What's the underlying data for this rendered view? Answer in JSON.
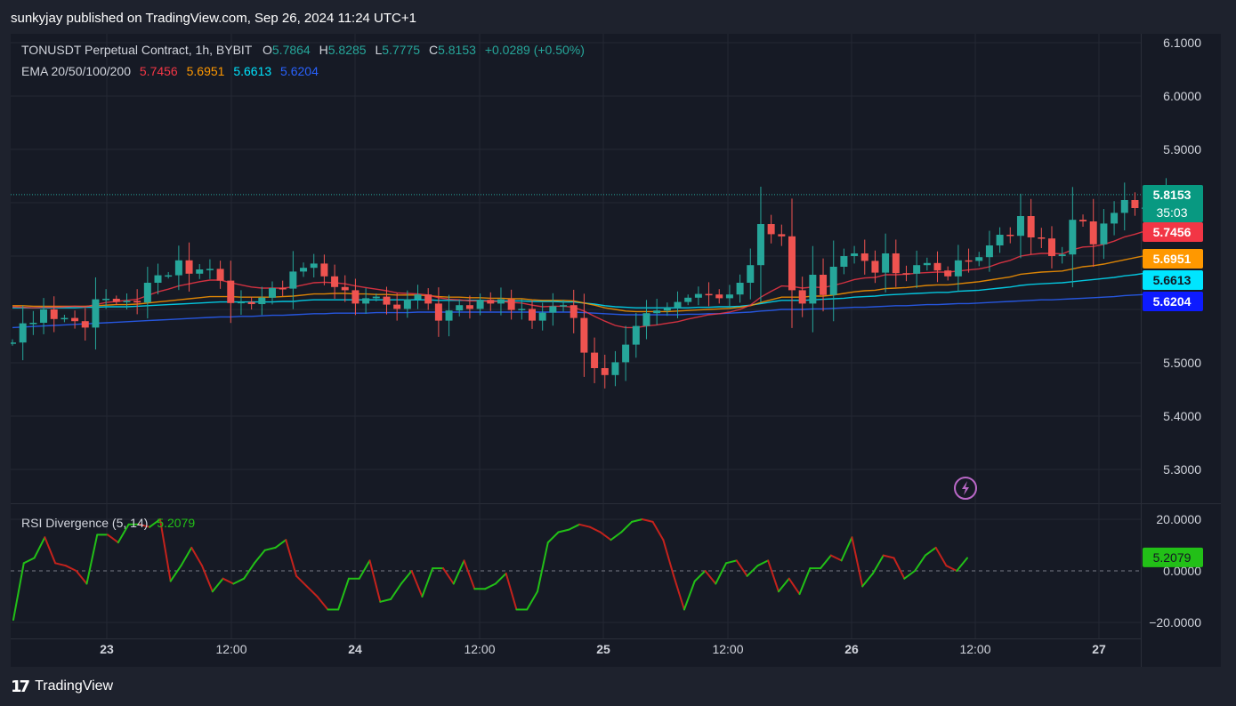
{
  "header": {
    "published": "sunkyjay published on TradingView.com, Sep 26, 2024 11:24 UTC+1"
  },
  "footer": {
    "brand": "TradingView",
    "logo_icon": "tradingview-logo-icon"
  },
  "legend": {
    "symbol": "TONUSDT Perpetual Contract, 1h, BYBIT",
    "o_label": "O",
    "o_value": "5.7864",
    "h_label": "H",
    "h_value": "5.8285",
    "l_label": "L",
    "l_value": "5.7775",
    "c_label": "C",
    "c_value": "5.8153",
    "change": "+0.0289 (+0.50%)",
    "ema_label": "EMA 20/50/100/200",
    "ema20": "5.7456",
    "ema50": "5.6951",
    "ema100": "5.6613",
    "ema200": "5.6204",
    "rsi_label": "RSI Divergence (5, 14)",
    "rsi_value": "5.2079"
  },
  "colors": {
    "up": "#26a69a",
    "down": "#ef5350",
    "ema20": "#f23645",
    "ema50": "#ff9800",
    "ema100": "#00e5ff",
    "ema200": "#2962ff",
    "rsi_up": "#22c017",
    "rsi_down": "#c4221c"
  },
  "chart_data": [
    {
      "type": "candlestick",
      "xlabel": "",
      "ylabel": "",
      "x_ticks": [
        "23",
        "12:00",
        "24",
        "12:00",
        "25",
        "12:00",
        "26",
        "12:00",
        "27"
      ],
      "y_ticks": [
        "6.1000",
        "6.0000",
        "5.9000",
        "5.5000",
        "5.4000",
        "5.3000"
      ],
      "ylim": [
        5.23,
        6.13
      ],
      "price_labels": [
        {
          "name": "last",
          "value": 5.8153,
          "text": "5.8153",
          "countdown": "35:03"
        },
        {
          "name": "ema20",
          "value": 5.7456,
          "text": "5.7456"
        },
        {
          "name": "ema50",
          "value": 5.6951,
          "text": "5.6951"
        },
        {
          "name": "ema100",
          "value": 5.6613,
          "text": "5.6613"
        },
        {
          "name": "ema200",
          "value": 5.6204,
          "text": "5.6204"
        }
      ],
      "close_start": 5.538,
      "closes": [
        5.538,
        5.574,
        5.575,
        5.6,
        5.582,
        5.584,
        5.578,
        5.566,
        5.619,
        5.62,
        5.614,
        5.616,
        5.613,
        5.65,
        5.664,
        5.664,
        5.692,
        5.667,
        5.675,
        5.676,
        5.654,
        5.612,
        5.614,
        5.61,
        5.622,
        5.64,
        5.639,
        5.671,
        5.678,
        5.686,
        5.662,
        5.642,
        5.636,
        5.611,
        5.621,
        5.624,
        5.609,
        5.601,
        5.619,
        5.628,
        5.611,
        5.579,
        5.598,
        5.608,
        5.601,
        5.618,
        5.611,
        5.619,
        5.599,
        5.601,
        5.579,
        5.594,
        5.606,
        5.608,
        5.584,
        5.519,
        5.49,
        5.477,
        5.501,
        5.534,
        5.569,
        5.593,
        5.598,
        5.603,
        5.614,
        5.622,
        5.629,
        5.628,
        5.621,
        5.628,
        5.65,
        5.683,
        5.76,
        5.741,
        5.737,
        5.636,
        5.611,
        5.665,
        5.627,
        5.68,
        5.7,
        5.705,
        5.691,
        5.669,
        5.705,
        5.668,
        5.667,
        5.683,
        5.687,
        5.673,
        5.662,
        5.692,
        5.691,
        5.698,
        5.72,
        5.74,
        5.738,
        5.775,
        5.735,
        5.733,
        5.7,
        5.703,
        5.768,
        5.765,
        5.722,
        5.761,
        5.781,
        5.805,
        5.79,
        5.791,
        5.782,
        5.815
      ],
      "series": [
        {
          "name": "EMA 20",
          "values": [
            5.605,
            5.604,
            5.603,
            5.604,
            5.604,
            5.605,
            5.606,
            5.605,
            5.609,
            5.613,
            5.615,
            5.617,
            5.619,
            5.626,
            5.633,
            5.638,
            5.644,
            5.648,
            5.652,
            5.655,
            5.655,
            5.65,
            5.646,
            5.642,
            5.64,
            5.64,
            5.64,
            5.642,
            5.646,
            5.65,
            5.651,
            5.65,
            5.648,
            5.644,
            5.641,
            5.638,
            5.635,
            5.631,
            5.63,
            5.629,
            5.627,
            5.622,
            5.619,
            5.618,
            5.616,
            5.616,
            5.615,
            5.615,
            5.613,
            5.612,
            5.608,
            5.605,
            5.606,
            5.606,
            5.604,
            5.597,
            5.587,
            5.578,
            5.57,
            5.566,
            5.566,
            5.569,
            5.571,
            5.574,
            5.577,
            5.582,
            5.586,
            5.59,
            5.592,
            5.595,
            5.6,
            5.608,
            5.623,
            5.634,
            5.644,
            5.643,
            5.64,
            5.642,
            5.641,
            5.645,
            5.65,
            5.656,
            5.659,
            5.66,
            5.665,
            5.665,
            5.666,
            5.668,
            5.669,
            5.67,
            5.67,
            5.672,
            5.674,
            5.676,
            5.68,
            5.687,
            5.692,
            5.7,
            5.703,
            5.705,
            5.705,
            5.704,
            5.712,
            5.717,
            5.718,
            5.722,
            5.728,
            5.736,
            5.741,
            5.747,
            5.75,
            5.746
          ]
        },
        {
          "name": "EMA 50",
          "values": [
            5.607,
            5.607,
            5.606,
            5.606,
            5.606,
            5.606,
            5.606,
            5.606,
            5.607,
            5.608,
            5.609,
            5.609,
            5.61,
            5.612,
            5.614,
            5.616,
            5.618,
            5.62,
            5.622,
            5.624,
            5.624,
            5.624,
            5.623,
            5.623,
            5.623,
            5.623,
            5.624,
            5.625,
            5.627,
            5.629,
            5.629,
            5.63,
            5.63,
            5.629,
            5.629,
            5.628,
            5.628,
            5.627,
            5.627,
            5.627,
            5.626,
            5.624,
            5.623,
            5.623,
            5.622,
            5.622,
            5.621,
            5.621,
            5.62,
            5.62,
            5.618,
            5.617,
            5.617,
            5.617,
            5.616,
            5.612,
            5.608,
            5.603,
            5.6,
            5.597,
            5.596,
            5.596,
            5.596,
            5.596,
            5.597,
            5.598,
            5.599,
            5.6,
            5.601,
            5.602,
            5.604,
            5.607,
            5.613,
            5.618,
            5.623,
            5.623,
            5.623,
            5.625,
            5.625,
            5.627,
            5.63,
            5.633,
            5.635,
            5.636,
            5.639,
            5.64,
            5.641,
            5.643,
            5.645,
            5.646,
            5.646,
            5.648,
            5.65,
            5.652,
            5.655,
            5.658,
            5.661,
            5.666,
            5.668,
            5.67,
            5.671,
            5.672,
            5.676,
            5.68,
            5.682,
            5.685,
            5.689,
            5.693,
            5.697,
            5.701,
            5.705,
            5.695
          ]
        },
        {
          "name": "EMA 100",
          "values": [
            5.603,
            5.603,
            5.603,
            5.603,
            5.603,
            5.603,
            5.603,
            5.604,
            5.604,
            5.605,
            5.605,
            5.605,
            5.606,
            5.607,
            5.608,
            5.609,
            5.61,
            5.611,
            5.612,
            5.613,
            5.614,
            5.614,
            5.614,
            5.614,
            5.614,
            5.614,
            5.615,
            5.615,
            5.617,
            5.618,
            5.618,
            5.618,
            5.618,
            5.618,
            5.618,
            5.618,
            5.618,
            5.618,
            5.618,
            5.618,
            5.618,
            5.617,
            5.617,
            5.617,
            5.617,
            5.617,
            5.616,
            5.616,
            5.616,
            5.616,
            5.615,
            5.615,
            5.615,
            5.614,
            5.614,
            5.612,
            5.61,
            5.607,
            5.605,
            5.604,
            5.603,
            5.603,
            5.603,
            5.603,
            5.603,
            5.603,
            5.604,
            5.604,
            5.605,
            5.605,
            5.606,
            5.608,
            5.611,
            5.614,
            5.617,
            5.617,
            5.617,
            5.618,
            5.619,
            5.62,
            5.621,
            5.623,
            5.624,
            5.625,
            5.627,
            5.628,
            5.629,
            5.63,
            5.631,
            5.632,
            5.632,
            5.634,
            5.635,
            5.636,
            5.638,
            5.64,
            5.642,
            5.645,
            5.647,
            5.648,
            5.649,
            5.65,
            5.652,
            5.654,
            5.656,
            5.658,
            5.66,
            5.663,
            5.665,
            5.668,
            5.67,
            5.661
          ]
        },
        {
          "name": "EMA 200",
          "values": [
            5.566,
            5.567,
            5.568,
            5.569,
            5.57,
            5.571,
            5.572,
            5.573,
            5.574,
            5.575,
            5.576,
            5.577,
            5.578,
            5.579,
            5.58,
            5.581,
            5.582,
            5.583,
            5.584,
            5.585,
            5.586,
            5.586,
            5.587,
            5.587,
            5.588,
            5.589,
            5.589,
            5.59,
            5.591,
            5.592,
            5.592,
            5.593,
            5.593,
            5.593,
            5.593,
            5.594,
            5.594,
            5.594,
            5.594,
            5.595,
            5.595,
            5.595,
            5.595,
            5.595,
            5.595,
            5.595,
            5.595,
            5.595,
            5.595,
            5.595,
            5.595,
            5.595,
            5.595,
            5.595,
            5.595,
            5.594,
            5.593,
            5.592,
            5.591,
            5.59,
            5.59,
            5.59,
            5.59,
            5.59,
            5.59,
            5.591,
            5.591,
            5.592,
            5.592,
            5.593,
            5.594,
            5.595,
            5.597,
            5.598,
            5.6,
            5.6,
            5.6,
            5.601,
            5.601,
            5.602,
            5.603,
            5.604,
            5.604,
            5.605,
            5.606,
            5.607,
            5.607,
            5.608,
            5.609,
            5.609,
            5.61,
            5.611,
            5.611,
            5.612,
            5.613,
            5.614,
            5.615,
            5.616,
            5.617,
            5.618,
            5.618,
            5.619,
            5.62,
            5.621,
            5.622,
            5.623,
            5.624,
            5.626,
            5.627,
            5.628,
            5.63,
            5.6204
          ]
        }
      ]
    },
    {
      "type": "line",
      "title": "RSI Divergence (5, 14)",
      "xlabel": "",
      "ylabel": "",
      "y_ticks": [
        "20.0000",
        "0.0000",
        "−20.0000"
      ],
      "ylim": [
        -26,
        24
      ],
      "last_value": 5.2079,
      "last_label": "5.2079",
      "values": [
        -19,
        3,
        5,
        13,
        3,
        2,
        0,
        -5,
        14,
        14,
        11,
        18,
        18,
        17,
        20,
        -4,
        2,
        9,
        2,
        -8,
        -3,
        -5,
        -3,
        3,
        8,
        9,
        12,
        -2,
        -6,
        -10,
        -15,
        -15,
        -3,
        -3,
        4,
        -12,
        -11,
        -5,
        0,
        -10,
        1,
        1,
        -5,
        4,
        -7,
        -7,
        -5,
        -1,
        -15,
        -15,
        -8,
        11,
        15,
        16,
        18,
        17,
        15,
        12,
        15,
        19,
        20,
        19,
        12,
        -2,
        -15,
        -4,
        0,
        -5,
        3,
        4,
        -2,
        2,
        4,
        -8,
        -3,
        -9,
        1,
        1,
        6,
        4,
        13,
        -6,
        -1,
        6,
        5,
        -3,
        0,
        6,
        9,
        2,
        0,
        5
      ]
    }
  ]
}
